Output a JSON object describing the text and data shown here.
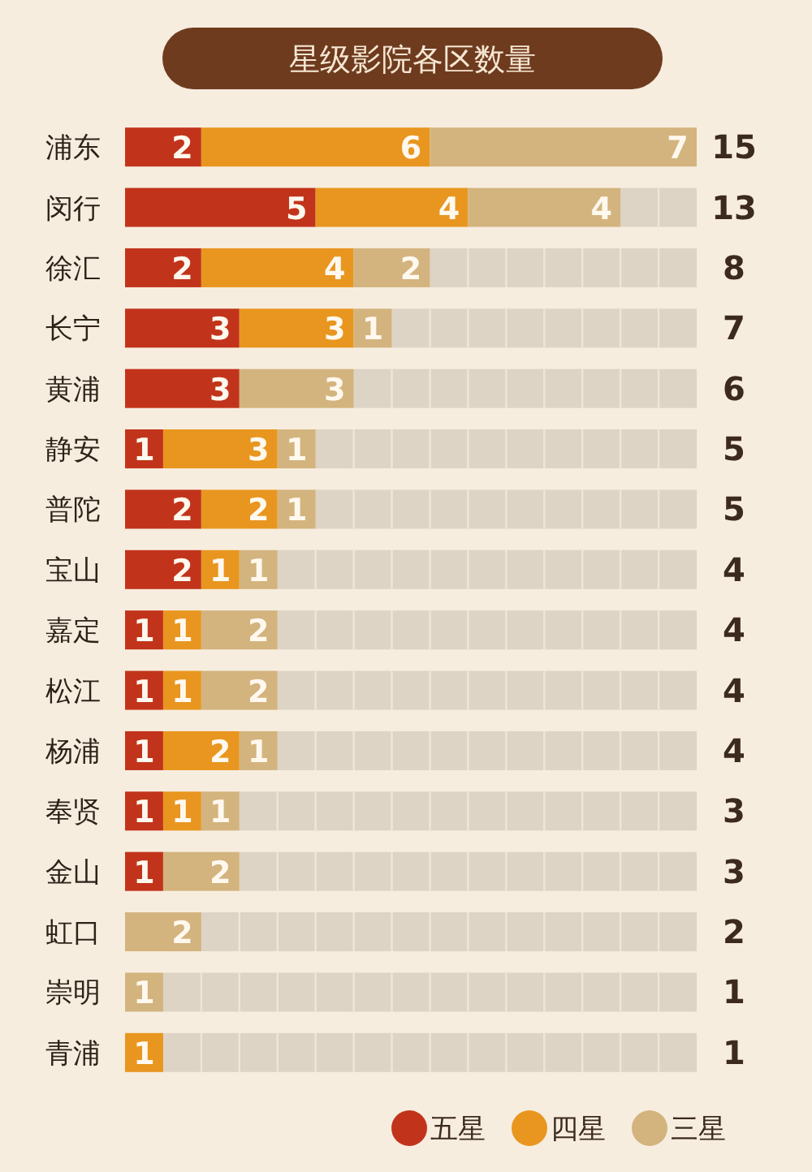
{
  "chart_data": {
    "type": "bar",
    "orientation": "horizontal",
    "stacked": true,
    "title": "星级影院各区数量",
    "categories": [
      "浦东",
      "闵行",
      "徐汇",
      "长宁",
      "黄浦",
      "静安",
      "普陀",
      "宝山",
      "嘉定",
      "松江",
      "杨浦",
      "奉贤",
      "金山",
      "虹口",
      "崇明",
      "青浦"
    ],
    "series": [
      {
        "name": "五星",
        "color": "#c1341b",
        "values": [
          2,
          5,
          2,
          3,
          3,
          1,
          2,
          2,
          1,
          1,
          1,
          1,
          1,
          null,
          null,
          null
        ]
      },
      {
        "name": "四星",
        "color": "#e8961f",
        "values": [
          6,
          4,
          4,
          3,
          null,
          3,
          2,
          1,
          1,
          1,
          2,
          1,
          null,
          null,
          null,
          1
        ]
      },
      {
        "name": "三星",
        "color": "#d3b47e",
        "values": [
          7,
          4,
          2,
          1,
          3,
          1,
          1,
          1,
          2,
          2,
          1,
          1,
          2,
          2,
          1,
          null
        ]
      }
    ],
    "xlim": [
      0,
      15
    ],
    "tick_labels": "y",
    "data_labels": true,
    "annotations": [
      "15",
      "13",
      "8",
      "7",
      "6",
      "5",
      "5",
      "4",
      "4",
      "4",
      "4",
      "3",
      "3",
      "2",
      "1",
      "1"
    ],
    "legend": "bottom right"
  }
}
